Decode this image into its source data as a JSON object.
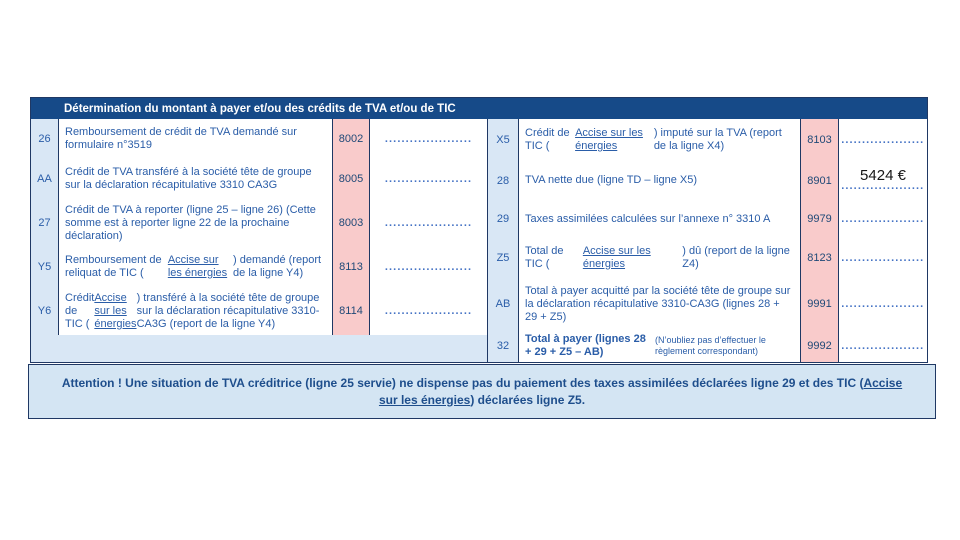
{
  "colors": {
    "header_bg": "#164A88",
    "border_navy": "#1F3864",
    "label_bg": "#D9E7F5",
    "code_bg": "#F9CBCB",
    "text_blue": "#2A5DA8",
    "code_text": "#1F4977",
    "dots_blue": "#4472C4",
    "attention_bg": "#D4E5F3",
    "amount_black": "#161616"
  },
  "header": {
    "title": "Détermination du montant à payer et/ou des crédits de TVA et/ou de TIC"
  },
  "placeholder_dots": ".....................",
  "left_rows": [
    {
      "label": "26",
      "desc": [
        {
          "t": "Remboursement de crédit de TVA demandé sur formulaire n°3519"
        }
      ],
      "code": "8002",
      "value": ""
    },
    {
      "label": "AA",
      "desc": [
        {
          "t": "Crédit de TVA transféré à la société tête de groupe sur la déclaration récapitulative 3310 CA3G"
        }
      ],
      "code": "8005",
      "value": ""
    },
    {
      "label": "27",
      "desc": [
        {
          "t": "Crédit de TVA à reporter (ligne 25 – ligne 26) (Cette somme est à reporter ligne 22 de la prochaine déclaration)"
        }
      ],
      "code": "8003",
      "value": ""
    },
    {
      "label": "Y5",
      "desc": [
        {
          "t": "Remboursement de reliquat de TIC ("
        },
        {
          "t": "Accise sur les énergies",
          "u": true
        },
        {
          "t": ") demandé (report de la ligne Y4)"
        }
      ],
      "code": "8113",
      "value": ""
    },
    {
      "label": "Y6",
      "desc": [
        {
          "t": "Crédit de TIC ("
        },
        {
          "t": "Accise sur les énergies",
          "u": true
        },
        {
          "t": ") transféré à la société tête de groupe sur la déclaration récapitulative 3310-CA3G (report de la ligne Y4)"
        }
      ],
      "code": "8114",
      "value": ""
    }
  ],
  "right_rows": [
    {
      "label": "X5",
      "desc": [
        {
          "t": "Crédit de TIC ("
        },
        {
          "t": "Accise sur les énergies",
          "u": true
        },
        {
          "t": ") imputé sur la TVA (report de la ligne X4)"
        }
      ],
      "code": "8103",
      "value": ""
    },
    {
      "label": "28",
      "desc": [
        {
          "t": "TVA nette due (ligne TD – ligne X5)"
        }
      ],
      "code": "8901",
      "value": "5424 €"
    },
    {
      "label": "29",
      "desc": [
        {
          "t": "Taxes assimilées calculées sur l’annexe n° 3310 A"
        }
      ],
      "code": "9979",
      "value": ""
    },
    {
      "label": "Z5",
      "desc": [
        {
          "t": "Total de TIC ("
        },
        {
          "t": "Accise sur les énergies",
          "u": true
        },
        {
          "t": ") dû (report de la ligne Z4)"
        }
      ],
      "code": "8123",
      "value": ""
    },
    {
      "label": "AB",
      "desc": [
        {
          "t": "Total à payer acquitté par la société tête de groupe sur la déclaration récapitulative 3310-CA3G (lignes 28 + 29 + Z5)"
        }
      ],
      "code": "9991",
      "value": ""
    },
    {
      "label": "32",
      "desc": [
        {
          "t": "Total à payer (lignes 28 + 29 + Z5 – AB)",
          "b": true
        },
        {
          "t": "(N’oubliez pas d’effectuer le règlement correspondant)",
          "br": true,
          "small": true
        }
      ],
      "code": "9992",
      "value": ""
    }
  ],
  "attention": {
    "segments": [
      {
        "t": "Attention ! Une situation de TVA créditrice (ligne 25 servie) ne dispense pas du paiement des taxes assimilées déclarées ligne 29 et des TIC ("
      },
      {
        "t": "Accise sur les énergies",
        "u": true
      },
      {
        "t": ") déclarées ligne Z5."
      }
    ]
  }
}
